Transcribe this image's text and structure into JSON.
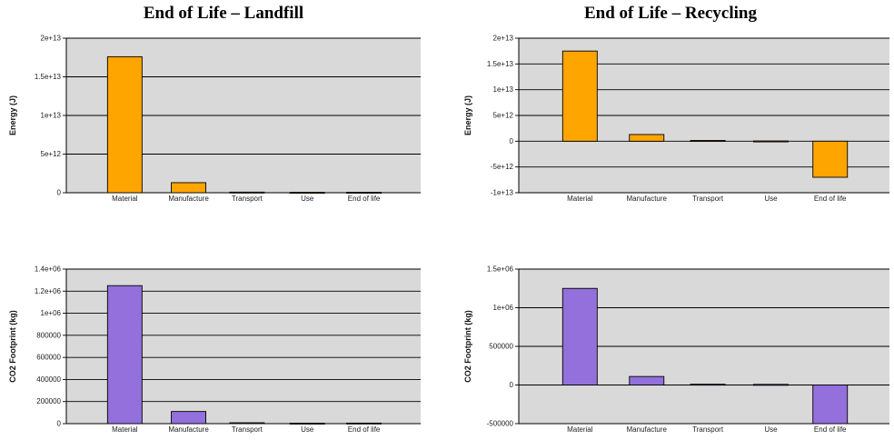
{
  "columns": {
    "left_title": "End of Life – Landfill",
    "right_title": "End of Life – Recycling"
  },
  "colors": {
    "energy": "#ffa500",
    "co2": "#9370db",
    "plot_bg": "#d9d9d9",
    "grid": "#000000"
  },
  "chart_data": [
    {
      "type": "bar",
      "title": "",
      "xlabel": "",
      "ylabel": "Energy (J)",
      "categories": [
        "Material",
        "Manufacture",
        "Transport",
        "Use",
        "End of life"
      ],
      "values": [
        17600000000000.0,
        1300000000000.0,
        80000000000.0,
        50000000000.0,
        60000000000.0
      ],
      "ylim": [
        0,
        20000000000000.0
      ],
      "yticks": [
        0,
        5000000000000.0,
        10000000000000.0,
        15000000000000.0,
        20000000000000.0
      ],
      "yticklabels": [
        "0",
        "5e+12",
        "1e+13",
        "1.5e+13",
        "2e+13"
      ],
      "color": "#ffa500",
      "grid": true
    },
    {
      "type": "bar",
      "title": "",
      "xlabel": "",
      "ylabel": "Energy (J)",
      "categories": [
        "Material",
        "Manufacture",
        "Transport",
        "Use",
        "End of life"
      ],
      "values": [
        17500000000000.0,
        1300000000000.0,
        150000000000.0,
        50000000000.0,
        -7000000000000.0
      ],
      "ylim": [
        -10000000000000.0,
        20000000000000.0
      ],
      "yticks": [
        -10000000000000.0,
        -5000000000000.0,
        0,
        5000000000000.0,
        10000000000000.0,
        15000000000000.0,
        20000000000000.0
      ],
      "yticklabels": [
        "-1e+13",
        "-5e+12",
        "0",
        "5e+12",
        "1e+13",
        "1.5e+13",
        "2e+13"
      ],
      "color": "#ffa500",
      "grid": true
    },
    {
      "type": "bar",
      "title": "",
      "xlabel": "",
      "ylabel": "CO2 Footprint (kg)",
      "categories": [
        "Material",
        "Manufacture",
        "Transport",
        "Use",
        "End of life"
      ],
      "values": [
        1250000,
        110000,
        8000,
        4000,
        5000
      ],
      "ylim": [
        0,
        1400000
      ],
      "yticks": [
        0,
        200000,
        400000,
        600000,
        800000,
        1000000,
        1200000,
        1400000
      ],
      "yticklabels": [
        "0",
        "200000",
        "400000",
        "600000",
        "800000",
        "1e+06",
        "1.2e+06",
        "1.4e+06"
      ],
      "color": "#9370db",
      "grid": true
    },
    {
      "type": "bar",
      "title": "",
      "xlabel": "",
      "ylabel": "CO2 Footprint (kg)",
      "categories": [
        "Material",
        "Manufacture",
        "Transport",
        "Use",
        "End of life"
      ],
      "values": [
        1250000,
        110000,
        10000,
        8000,
        -500000
      ],
      "ylim": [
        -500000,
        1500000
      ],
      "yticks": [
        -500000,
        0,
        500000,
        1000000,
        1500000
      ],
      "yticklabels": [
        "-500000",
        "0",
        "500000",
        "1e+06",
        "1.5e+06"
      ],
      "color": "#9370db",
      "grid": true
    }
  ]
}
